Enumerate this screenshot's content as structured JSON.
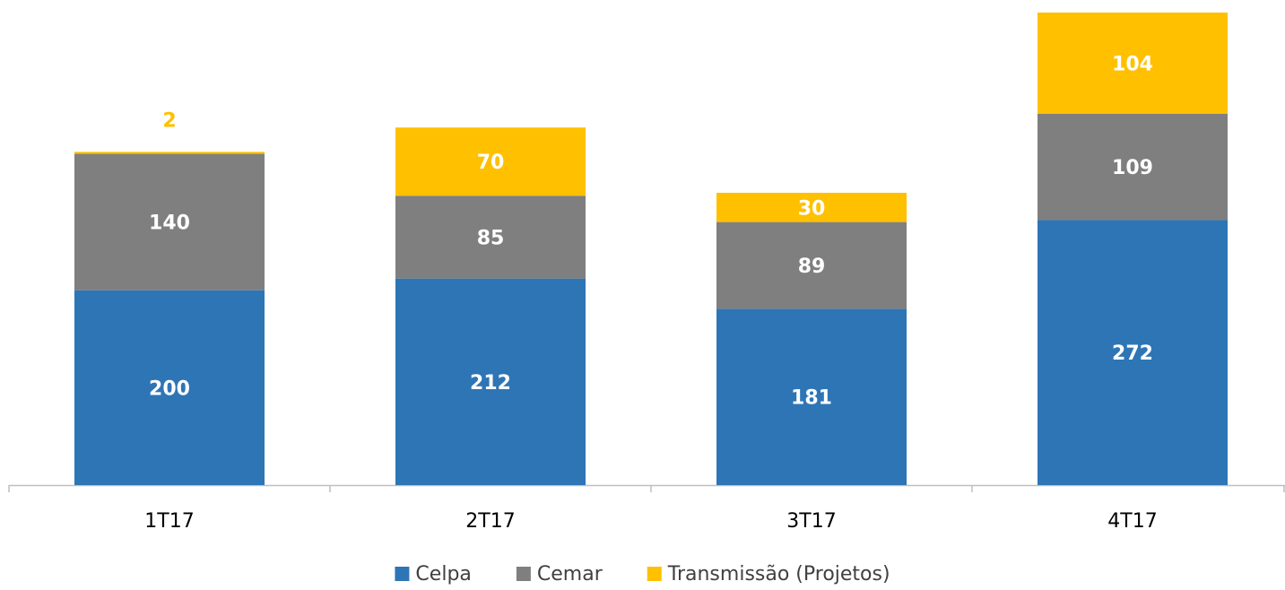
{
  "chart_data": {
    "type": "stacked_bar",
    "categories": [
      "1T17",
      "2T17",
      "3T17",
      "4T17"
    ],
    "series": [
      {
        "name": "Celpa",
        "color": "#2e75b6",
        "values": [
          200,
          212,
          181,
          272
        ]
      },
      {
        "name": "Cemar",
        "color": "#7f7f7f",
        "values": [
          140,
          85,
          89,
          109
        ]
      },
      {
        "name": "Transmissão (Projetos)",
        "color": "#ffc000",
        "values": [
          2,
          70,
          30,
          104
        ]
      }
    ],
    "ylim": [
      0,
      485
    ],
    "legend": "bottom"
  }
}
